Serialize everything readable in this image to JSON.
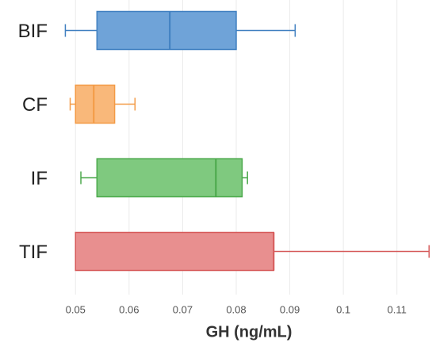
{
  "chart_data": {
    "type": "boxplot",
    "orientation": "horizontal",
    "x_label": "GH (ng/mL)",
    "categories": [
      "BIF",
      "CF",
      "IF",
      "TIF"
    ],
    "colors": [
      "#6fa3d8",
      "#f9b87a",
      "#7fc97f",
      "#e88f8f"
    ],
    "edge_colors": [
      "#3f7fc0",
      "#f39a45",
      "#4aa84a",
      "#d65a5a"
    ],
    "boxes": [
      {
        "min": 0.0481,
        "q1": 0.054,
        "median": 0.0676,
        "q3": 0.08,
        "max": 0.091
      },
      {
        "min": 0.049,
        "q1": 0.05,
        "median": 0.0534,
        "q3": 0.0573,
        "max": 0.0611
      },
      {
        "min": 0.051,
        "q1": 0.054,
        "median": 0.0762,
        "q3": 0.0811,
        "max": 0.0821
      },
      {
        "min": 0.05,
        "q1": 0.05,
        "median": 0.087,
        "q3": 0.087,
        "max": 0.116
      }
    ],
    "xlim": [
      0.047,
      0.117
    ],
    "xticks": [
      0.05,
      0.06,
      0.07,
      0.08,
      0.09,
      0.1,
      0.11
    ],
    "grid": true
  }
}
